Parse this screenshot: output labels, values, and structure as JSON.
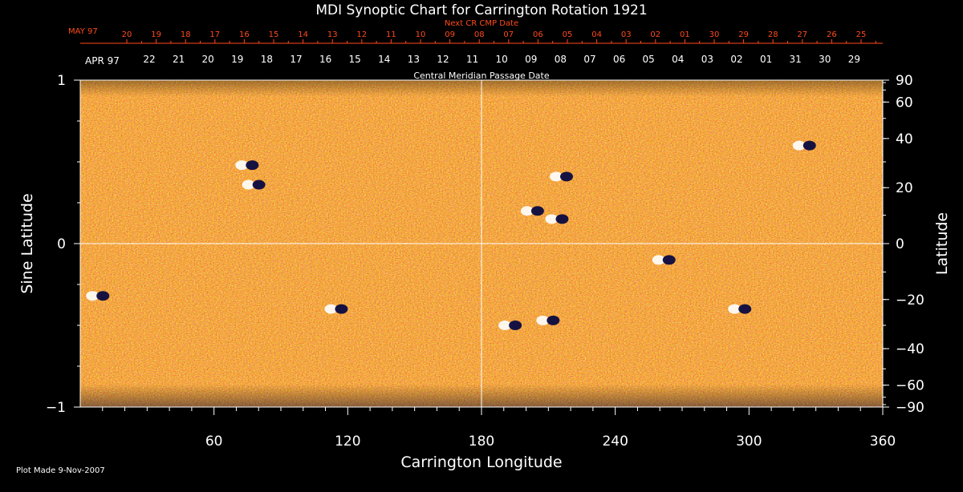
{
  "chart_data": {
    "type": "heatmap",
    "title": "MDI Synoptic Chart for Carrington Rotation 1921",
    "xlabel": "Carrington Longitude",
    "ylabel_left": "Sine Latitude",
    "ylabel_right": "Latitude",
    "xlim": [
      0,
      360
    ],
    "ylim": [
      -1,
      1
    ],
    "x_ticks": [
      "60",
      "120",
      "180",
      "240",
      "300",
      "360"
    ],
    "y_left_ticks": [
      "1",
      "0",
      "−1"
    ],
    "y_right_ticks": [
      "90",
      "60",
      "40",
      "20",
      "0",
      "−20",
      "−40",
      "−60",
      "−90"
    ],
    "top_axis_next_label": "Next CR CMP Date",
    "top_axis_next_start": "MAY 97",
    "top_axis_next_dates": [
      "20",
      "19",
      "18",
      "17",
      "16",
      "15",
      "14",
      "13",
      "12",
      "11",
      "10",
      "09",
      "08",
      "07",
      "06",
      "05",
      "04",
      "03",
      "02",
      "01",
      "30",
      "29",
      "28",
      "27",
      "26",
      "25"
    ],
    "top_axis_cmp_label": "Central Meridian Passage Date",
    "top_axis_cmp_start": "APR 97",
    "top_axis_cmp_dates": [
      "22",
      "21",
      "20",
      "19",
      "18",
      "17",
      "16",
      "15",
      "14",
      "13",
      "12",
      "11",
      "10",
      "09",
      "08",
      "07",
      "06",
      "05",
      "04",
      "03",
      "02",
      "01",
      "31",
      "30",
      "29"
    ],
    "guide_lines": {
      "longitude": 180,
      "sine_latitude": 0
    },
    "active_regions": [
      {
        "lon": 8,
        "sinlat": -0.32
      },
      {
        "lon": 75,
        "sinlat": 0.48
      },
      {
        "lon": 78,
        "sinlat": 0.36
      },
      {
        "lon": 115,
        "sinlat": -0.4
      },
      {
        "lon": 193,
        "sinlat": -0.5
      },
      {
        "lon": 210,
        "sinlat": -0.47
      },
      {
        "lon": 216,
        "sinlat": 0.41
      },
      {
        "lon": 214,
        "sinlat": 0.15
      },
      {
        "lon": 203,
        "sinlat": 0.2
      },
      {
        "lon": 262,
        "sinlat": -0.1
      },
      {
        "lon": 296,
        "sinlat": -0.4
      },
      {
        "lon": 325,
        "sinlat": 0.6
      }
    ],
    "colors": {
      "background": "#e05010",
      "positive": "#ffffff",
      "negative": "#0a0a40",
      "title": "#ffffff",
      "date_red": "#ff4a1a"
    }
  },
  "footer": {
    "plot_made": "Plot Made  9-Nov-2007"
  }
}
